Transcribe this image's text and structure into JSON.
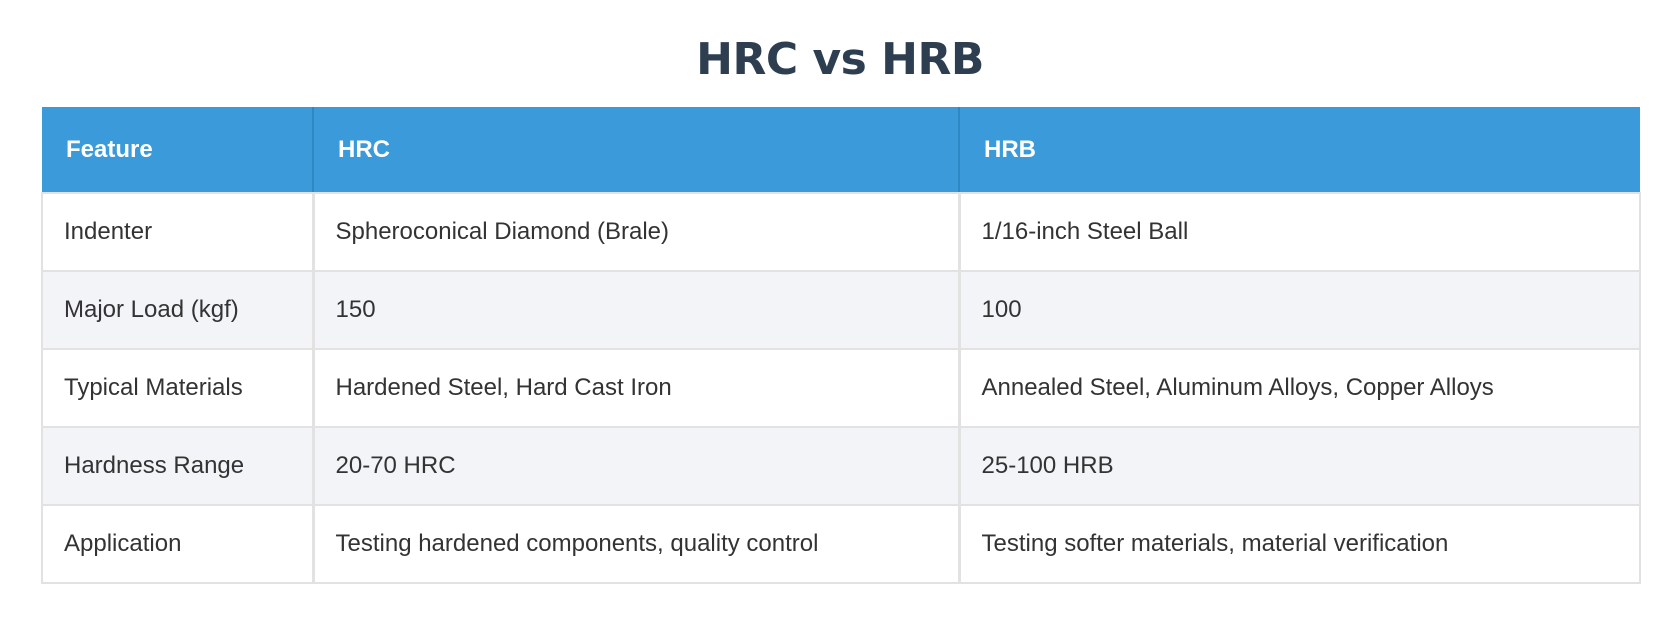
{
  "title": "HRC vs HRB",
  "table": {
    "headers": [
      "Feature",
      "HRC",
      "HRB"
    ],
    "rows": [
      [
        "Indenter",
        "Spheroconical Diamond (Brale)",
        "1/16-inch Steel Ball"
      ],
      [
        "Major Load (kgf)",
        "150",
        "100"
      ],
      [
        "Typical Materials",
        "Hardened Steel, Hard Cast Iron",
        "Annealed Steel, Aluminum Alloys, Copper Alloys"
      ],
      [
        "Hardness Range",
        "20-70 HRC",
        "25-100 HRB"
      ],
      [
        "Application",
        "Testing hardened components, quality control",
        "Testing softer materials, material verification"
      ]
    ]
  },
  "colors": {
    "header_background": "#3a9ada",
    "header_text": "#ffffff",
    "title_text": "#2c3e50",
    "alt_row_background": "#f2f4f8"
  }
}
